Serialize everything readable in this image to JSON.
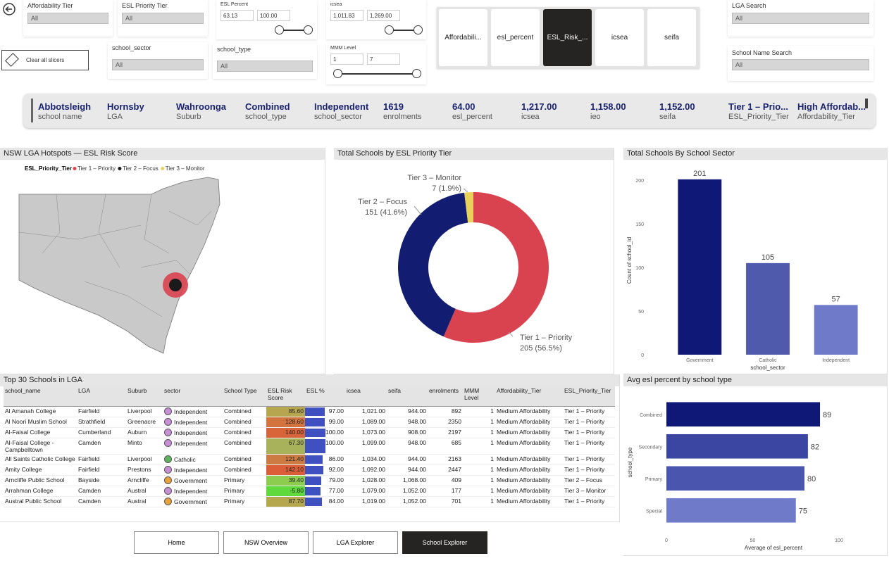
{
  "slicers": [
    {
      "title": "Affordability Tier",
      "value": "All"
    },
    {
      "title": "ESL Priority Tier",
      "value": "All"
    },
    {
      "title": "school_sector",
      "value": "All"
    },
    {
      "title": "school_type",
      "value": "All"
    },
    {
      "title": "LGA Search",
      "value": "All"
    },
    {
      "title": "School Name Search",
      "value": "All"
    }
  ],
  "range_slicers": [
    {
      "title": "ESL Percent",
      "min": "63.13",
      "max": "100.00"
    },
    {
      "title": "icsea",
      "min": "1,011.83",
      "max": "1,269.00"
    },
    {
      "title": "MMM Level",
      "min": "1",
      "max": "7"
    }
  ],
  "clear_button": "Clear all slicers",
  "field_buttons": {
    "items": [
      "Affordabili...",
      "esl_percent",
      "ESL_Risk_...",
      "icsea",
      "seifa"
    ],
    "selected": 2
  },
  "cards": [
    {
      "value": "Abbotsleigh",
      "label": "school name"
    },
    {
      "value": "Hornsby",
      "label": "LGA"
    },
    {
      "value": "Wahroonga",
      "label": "Suburb"
    },
    {
      "value": "Combined",
      "label": "school_type"
    },
    {
      "value": "Independent",
      "label": "school_sector"
    },
    {
      "value": "1619",
      "label": "enrolments"
    },
    {
      "value": "64.00",
      "label": "esl_percent"
    },
    {
      "value": "1,217.00",
      "label": "icsea"
    },
    {
      "value": "1,158.00",
      "label": "ieo"
    },
    {
      "value": "1,152.00",
      "label": "seifa"
    },
    {
      "value": "Tier 1 – Prio...",
      "label": "ESL_Priority_Tier"
    },
    {
      "value": "High Affordab...",
      "label": "Affordability_Tier"
    }
  ],
  "map": {
    "title": "NSW LGA Hotspots — ESL Risk Score",
    "legend_title": "ESL_Priority_Tier",
    "legend": [
      {
        "name": "Tier 1 – Priority",
        "color": "#d9434f"
      },
      {
        "name": "Tier 2 – Focus",
        "color": "#1a1a1a"
      },
      {
        "name": "Tier 3 – Monitor",
        "color": "#e8d25c"
      }
    ]
  },
  "chart_data": [
    {
      "type": "pie",
      "title": "Total Schools by ESL Priority Tier",
      "categories": [
        "Tier 1 – Priority",
        "Tier 2 – Focus",
        "Tier 3 – Monitor"
      ],
      "values": [
        205,
        151,
        7
      ],
      "value_labels": [
        "205 (56.5%)",
        "151 (41.6%)",
        "7 (1.9%)"
      ],
      "colors": [
        "#d9434f",
        "#121d72",
        "#e8d25c"
      ]
    },
    {
      "type": "bar",
      "title": "Total Schools By School Sector",
      "categories": [
        "Government",
        "Catholic",
        "Independent"
      ],
      "values": [
        201,
        105,
        57
      ],
      "colors": [
        "#0f1877",
        "#4f5aad",
        "#6f7bc9"
      ],
      "ylim": [
        0,
        217
      ],
      "yticks": [
        0,
        50,
        100,
        150,
        200
      ],
      "x_label": "school_sector",
      "y_label": "Count of school_id"
    },
    {
      "type": "hbar",
      "title": "Avg esl percent by school type",
      "categories": [
        "Combined",
        "Secondary",
        "Primary",
        "Special"
      ],
      "values": [
        89,
        82,
        80,
        75
      ],
      "colors": [
        "#0f1877",
        "#3a46a2",
        "#4a56ad",
        "#6f7bc9"
      ],
      "xlim": [
        0,
        120
      ],
      "xticks": [
        0,
        50,
        100
      ],
      "x_label": "Average of esl_percent",
      "y_label": "school_type"
    }
  ],
  "table": {
    "title": "Top 30 Schools in LGA",
    "columns": [
      "school_name",
      "LGA",
      "Suburb",
      "sector",
      "School Type",
      "ESL Risk Score",
      "ESL %",
      "icsea",
      "seifa",
      "enrolments",
      "MMM Level",
      "Affordability_Tier",
      "ESL_Priority_Tier"
    ],
    "rows": [
      [
        "Al Amanah College",
        "Fairfield",
        "Liverpool",
        "Independent",
        "Combined",
        "85.60",
        "97.00",
        "1,021.00",
        "944.00",
        "892",
        "1",
        "Medium Affordability",
        "Tier 1 – Priority"
      ],
      [
        "Al Noori Muslim School",
        "Strathfield",
        "Greenacre",
        "Independent",
        "Combined",
        "128.60",
        "99.00",
        "1,089.00",
        "948.00",
        "2350",
        "1",
        "Medium Affordability",
        "Tier 1 – Priority"
      ],
      [
        "Al-Faisal College",
        "Cumberland",
        "Auburn",
        "Independent",
        "Combined",
        "140.00",
        "100.00",
        "1,073.00",
        "908.00",
        "2197",
        "1",
        "Medium Affordability",
        "Tier 1 – Priority"
      ],
      [
        "Al-Faisal College - Campbelltown",
        "Camden",
        "Minto",
        "Independent",
        "Combined",
        "67.30",
        "100.00",
        "1,099.00",
        "948.00",
        "685",
        "1",
        "Medium Affordability",
        "Tier 1 – Priority"
      ],
      [
        "All Saints Catholic College",
        "Fairfield",
        "Liverpool",
        "Catholic",
        "Combined",
        "121.40",
        "86.00",
        "1,034.00",
        "944.00",
        "2163",
        "1",
        "Medium Affordability",
        "Tier 1 – Priority"
      ],
      [
        "Amity College",
        "Fairfield",
        "Prestons",
        "Independent",
        "Combined",
        "142.10",
        "92.00",
        "1,092.00",
        "944.00",
        "2447",
        "1",
        "Medium Affordability",
        "Tier 1 – Priority"
      ],
      [
        "Arncliffe Public School",
        "Bayside",
        "Arncliffe",
        "Government",
        "Primary",
        "39.40",
        "79.00",
        "1,028.00",
        "1,068.00",
        "409",
        "1",
        "Medium Affordability",
        "Tier 2 – Focus"
      ],
      [
        "Arrahman College",
        "Camden",
        "Austral",
        "Independent",
        "Primary",
        "-5.80",
        "77.00",
        "1,079.00",
        "1,052.00",
        "177",
        "1",
        "Medium Affordability",
        "Tier 3 – Monitor"
      ],
      [
        "Austral Public School",
        "Camden",
        "Austral",
        "Government",
        "Primary",
        "87.70",
        "84.00",
        "1,019.00",
        "1,052.00",
        "701",
        "1",
        "Medium Affordability",
        "Tier 1 – Priority"
      ]
    ],
    "risk_colors": [
      "#b7a650",
      "#d3743f",
      "#d8643a",
      "#a8b25a",
      "#cc7b42",
      "#db5e38",
      "#8ccc4f",
      "#5fd93c",
      "#b4a74e"
    ],
    "sector_icon_colors": [
      "#c98fd6",
      "#c98fd6",
      "#c98fd6",
      "#c98fd6",
      "#5fb35f",
      "#c98fd6",
      "#e8a23c",
      "#c98fd6",
      "#e8a23c"
    ]
  },
  "nav": {
    "items": [
      "Home",
      "NSW Overview",
      "LGA Explorer",
      "School Explorer"
    ],
    "selected": 3
  }
}
